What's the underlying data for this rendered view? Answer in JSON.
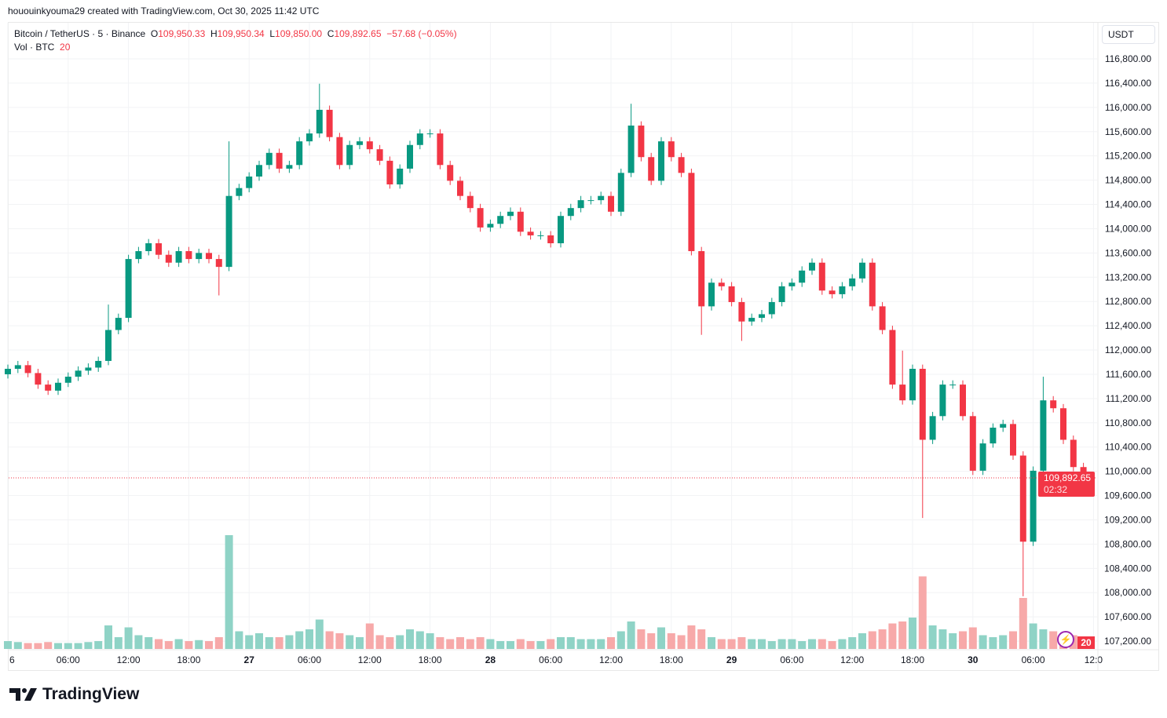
{
  "credit": "hououinkyouma29 created with TradingView.com, Oct 30, 2025 11:42 UTC",
  "legend": {
    "symbol": "Bitcoin / TetherUS · 5 · Binance",
    "o_label": "O",
    "o": "109,950.33",
    "h_label": "H",
    "h": "109,950.34",
    "l_label": "L",
    "l": "109,850.00",
    "c_label": "C",
    "c": "109,892.65",
    "change": "−57.68 (−0.05%)",
    "vol_label": "Vol · BTC",
    "vol": "20"
  },
  "currency_button": "USDT",
  "last_price": {
    "value": "109,892.65",
    "countdown": "02:32"
  },
  "volume_badge": "20",
  "logo": "TradingView",
  "colors": {
    "up": "#089981",
    "down": "#F23645",
    "up_volume": "#8fd3c6",
    "down_volume": "#f7a9a9",
    "indicator": "#9c27b0"
  },
  "icons": {
    "indicator": "lightning-icon",
    "logo": "tradingview-logo-icon"
  },
  "chart_data": {
    "type": "candlestick",
    "interval": "5",
    "ylim": [
      107000,
      117200
    ],
    "y_ticks": [
      "116,800.00",
      "116,400.00",
      "116,000.00",
      "115,600.00",
      "115,200.00",
      "114,800.00",
      "114,400.00",
      "114,000.00",
      "113,600.00",
      "113,200.00",
      "112,800.00",
      "112,400.00",
      "112,000.00",
      "111,600.00",
      "111,200.00",
      "110,800.00",
      "110,400.00",
      "110,000.00",
      "109,600.00",
      "109,200.00",
      "108,800.00",
      "108,400.00",
      "108,000.00",
      "107,600.00",
      "107,200.00"
    ],
    "x_ticks": [
      {
        "label": "6",
        "hour": 0,
        "bold": false
      },
      {
        "label": "06:00",
        "hour": 6
      },
      {
        "label": "12:00",
        "hour": 12
      },
      {
        "label": "18:00",
        "hour": 18
      },
      {
        "label": "27",
        "hour": 24,
        "bold": true
      },
      {
        "label": "06:00",
        "hour": 30
      },
      {
        "label": "12:00",
        "hour": 36
      },
      {
        "label": "18:00",
        "hour": 42
      },
      {
        "label": "28",
        "hour": 48,
        "bold": true
      },
      {
        "label": "06:00",
        "hour": 54
      },
      {
        "label": "12:00",
        "hour": 60
      },
      {
        "label": "18:00",
        "hour": 66
      },
      {
        "label": "29",
        "hour": 72,
        "bold": true
      },
      {
        "label": "06:00",
        "hour": 78
      },
      {
        "label": "12:00",
        "hour": 84
      },
      {
        "label": "18:00",
        "hour": 90
      },
      {
        "label": "30",
        "hour": 96,
        "bold": true
      },
      {
        "label": "06:00",
        "hour": 102
      },
      {
        "label": "12:0",
        "hour": 108
      }
    ],
    "hourly_close": [
      111690,
      111750,
      111620,
      111430,
      111330,
      111460,
      111560,
      111660,
      111710,
      111820,
      112330,
      112530,
      113500,
      113630,
      113760,
      113570,
      113440,
      113630,
      113500,
      113600,
      113500,
      113370,
      114540,
      114670,
      114860,
      115050,
      115250,
      114990,
      115050,
      115440,
      115570,
      115960,
      115510,
      115050,
      115380,
      115440,
      115310,
      115120,
      114730,
      114990,
      115380,
      115570,
      115570,
      115050,
      114790,
      114540,
      114340,
      114020,
      114080,
      114210,
      114280,
      113950,
      113890,
      113890,
      113760,
      114210,
      114340,
      114470,
      114470,
      114540,
      114280,
      114920,
      115700,
      115180,
      114790,
      115440,
      115180,
      114920,
      113630,
      112720,
      113110,
      113050,
      112790,
      112470,
      112530,
      112590,
      112790,
      113050,
      113110,
      113310,
      113440,
      112980,
      112920,
      113050,
      113180,
      113440,
      112720,
      112330,
      111430,
      111170,
      111690,
      110520,
      110910,
      111430,
      111430,
      110910,
      110010,
      110460,
      110720,
      110780,
      110260,
      108840,
      110010,
      111170,
      111040,
      110520,
      110070,
      109892.65
    ],
    "first_open": 111600,
    "wick_extremes": [
      {
        "hour": 10,
        "high": 112750
      },
      {
        "hour": 22,
        "high": 115440
      },
      {
        "hour": 31,
        "high": 116390
      },
      {
        "hour": 62,
        "high": 116060
      },
      {
        "hour": 89,
        "high": 111990
      },
      {
        "hour": 91,
        "low": 109230
      },
      {
        "hour": 101,
        "low": 107940
      },
      {
        "hour": 103,
        "high": 111560
      },
      {
        "hour": 21,
        "low": 112900
      },
      {
        "hour": 69,
        "low": 112250
      },
      {
        "hour": 73,
        "low": 112150
      }
    ],
    "hourly_volume": [
      40,
      35,
      30,
      30,
      35,
      30,
      30,
      30,
      35,
      40,
      120,
      60,
      110,
      70,
      60,
      50,
      40,
      50,
      40,
      45,
      40,
      60,
      580,
      90,
      70,
      80,
      60,
      60,
      70,
      90,
      100,
      150,
      90,
      80,
      70,
      60,
      130,
      70,
      60,
      70,
      100,
      90,
      80,
      60,
      50,
      60,
      50,
      60,
      50,
      40,
      40,
      50,
      40,
      40,
      50,
      60,
      60,
      50,
      50,
      50,
      60,
      90,
      140,
      100,
      80,
      110,
      80,
      70,
      120,
      100,
      60,
      50,
      50,
      60,
      50,
      50,
      40,
      50,
      50,
      40,
      50,
      50,
      40,
      50,
      60,
      80,
      90,
      100,
      130,
      140,
      160,
      370,
      120,
      100,
      80,
      90,
      110,
      70,
      60,
      70,
      90,
      260,
      130,
      100,
      90,
      80,
      70,
      20
    ],
    "last_price": 109892.65
  }
}
